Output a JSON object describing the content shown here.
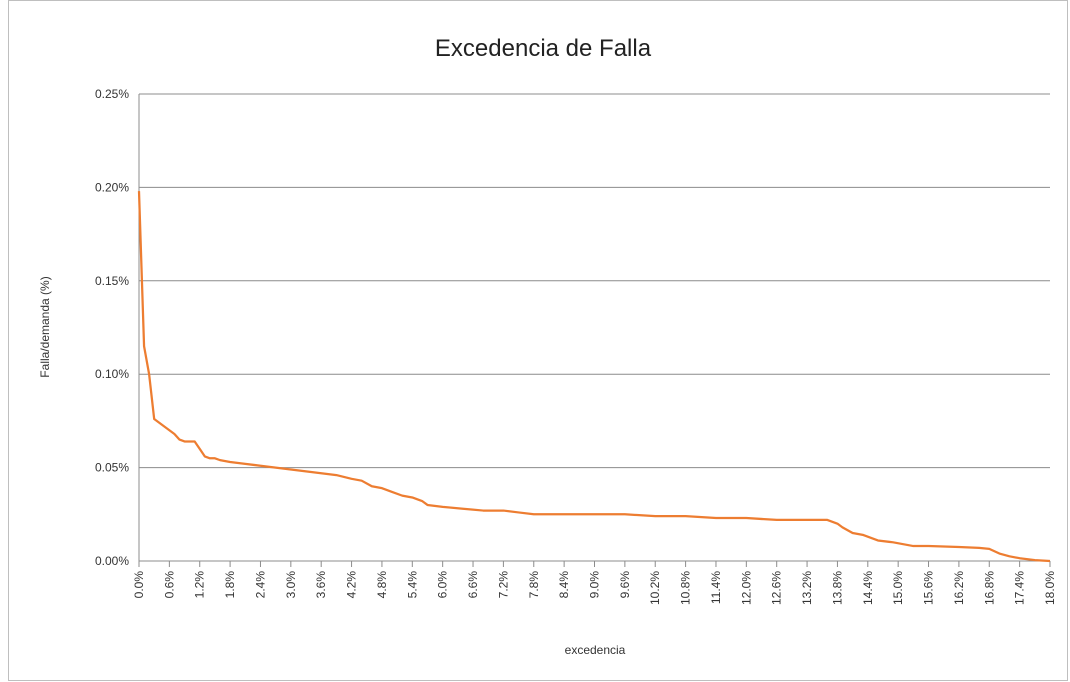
{
  "chart_data": {
    "type": "line",
    "title": "Excedencia de Falla",
    "x_label": "excedencia",
    "y_label": "Falla/demanda (%)",
    "x": [
      0.0,
      0.1,
      0.2,
      0.3,
      0.4,
      0.5,
      0.6,
      0.7,
      0.8,
      0.9,
      1.0,
      1.1,
      1.2,
      1.3,
      1.4,
      1.5,
      1.6,
      1.8,
      2.1,
      2.4,
      2.7,
      3.0,
      3.3,
      3.6,
      3.9,
      4.2,
      4.4,
      4.6,
      4.8,
      5.0,
      5.2,
      5.4,
      5.6,
      5.7,
      6.0,
      6.4,
      6.8,
      7.2,
      7.5,
      7.8,
      8.4,
      9.0,
      9.6,
      10.2,
      10.8,
      11.4,
      12.0,
      12.6,
      13.2,
      13.6,
      13.8,
      13.9,
      14.1,
      14.3,
      14.6,
      14.9,
      15.3,
      15.6,
      16.2,
      16.6,
      16.8,
      17.0,
      17.2,
      17.4,
      17.7,
      18.0
    ],
    "series": [
      {
        "name": "Falla/demanda",
        "color": "#ed7d31",
        "values": [
          0.198,
          0.115,
          0.1,
          0.076,
          0.074,
          0.072,
          0.07,
          0.068,
          0.065,
          0.064,
          0.064,
          0.064,
          0.06,
          0.056,
          0.055,
          0.055,
          0.054,
          0.053,
          0.052,
          0.051,
          0.05,
          0.049,
          0.048,
          0.047,
          0.046,
          0.044,
          0.043,
          0.04,
          0.039,
          0.037,
          0.035,
          0.034,
          0.032,
          0.03,
          0.029,
          0.028,
          0.027,
          0.027,
          0.026,
          0.025,
          0.025,
          0.025,
          0.025,
          0.024,
          0.024,
          0.023,
          0.023,
          0.022,
          0.022,
          0.022,
          0.02,
          0.018,
          0.015,
          0.014,
          0.011,
          0.01,
          0.008,
          0.008,
          0.0075,
          0.007,
          0.0065,
          0.004,
          0.0025,
          0.0015,
          0.0005,
          0.0
        ]
      }
    ],
    "xlim": [
      0,
      18
    ],
    "xticks": [
      {
        "value": 0,
        "label": "0.0%"
      },
      {
        "value": 0.6,
        "label": "0.6%"
      },
      {
        "value": 1.2,
        "label": "1.2%"
      },
      {
        "value": 1.8,
        "label": "1.8%"
      },
      {
        "value": 2.4,
        "label": "2.4%"
      },
      {
        "value": 3.0,
        "label": "3.0%"
      },
      {
        "value": 3.6,
        "label": "3.6%"
      },
      {
        "value": 4.2,
        "label": "4.2%"
      },
      {
        "value": 4.8,
        "label": "4.8%"
      },
      {
        "value": 5.4,
        "label": "5.4%"
      },
      {
        "value": 6.0,
        "label": "6.0%"
      },
      {
        "value": 6.6,
        "label": "6.6%"
      },
      {
        "value": 7.2,
        "label": "7.2%"
      },
      {
        "value": 7.8,
        "label": "7.8%"
      },
      {
        "value": 8.4,
        "label": "8.4%"
      },
      {
        "value": 9.0,
        "label": "9.0%"
      },
      {
        "value": 9.6,
        "label": "9.6%"
      },
      {
        "value": 10.2,
        "label": "10.2%"
      },
      {
        "value": 10.8,
        "label": "10.8%"
      },
      {
        "value": 11.4,
        "label": "11.4%"
      },
      {
        "value": 12.0,
        "label": "12.0%"
      },
      {
        "value": 12.6,
        "label": "12.6%"
      },
      {
        "value": 13.2,
        "label": "13.2%"
      },
      {
        "value": 13.8,
        "label": "13.8%"
      },
      {
        "value": 14.4,
        "label": "14.4%"
      },
      {
        "value": 15.0,
        "label": "15.0%"
      },
      {
        "value": 15.6,
        "label": "15.6%"
      },
      {
        "value": 16.2,
        "label": "16.2%"
      },
      {
        "value": 16.8,
        "label": "16.8%"
      },
      {
        "value": 17.4,
        "label": "17.4%"
      },
      {
        "value": 18.0,
        "label": "18.0%"
      }
    ],
    "ylim": [
      0,
      0.25
    ],
    "yticks": [
      {
        "value": 0,
        "label": "0.00%"
      },
      {
        "value": 0.05,
        "label": "0.05%"
      },
      {
        "value": 0.1,
        "label": "0.10%"
      },
      {
        "value": 0.15,
        "label": "0.15%"
      },
      {
        "value": 0.2,
        "label": "0.20%"
      },
      {
        "value": 0.25,
        "label": "0.25%"
      }
    ],
    "grid": true
  }
}
